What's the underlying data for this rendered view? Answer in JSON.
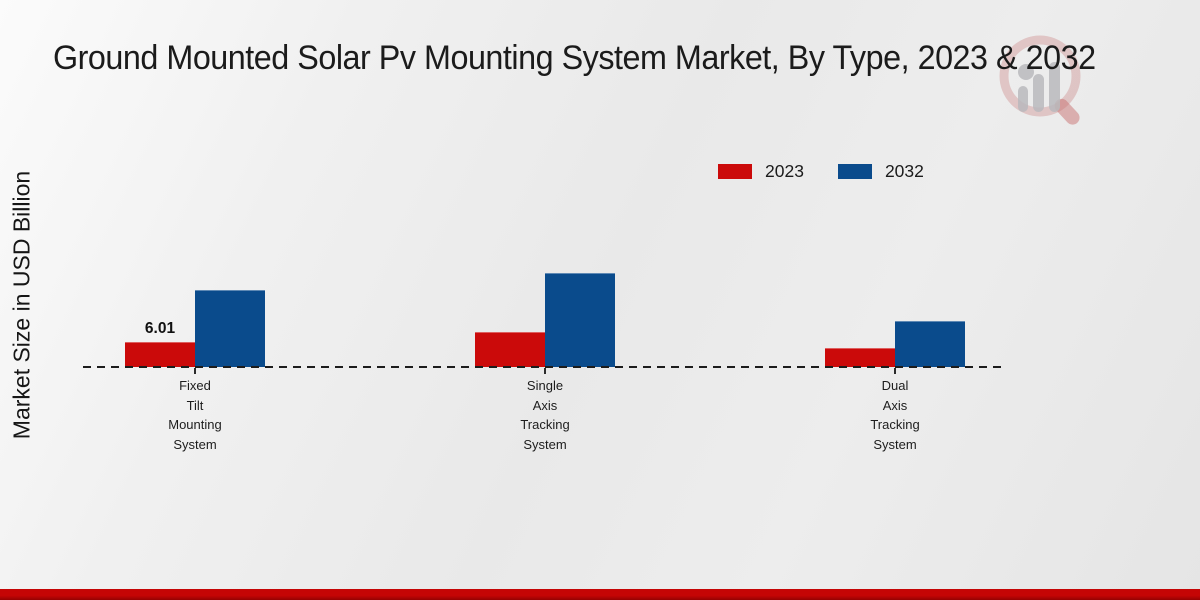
{
  "title": "Ground Mounted Solar Pv Mounting System Market, By Type, 2023 & 2032",
  "y_axis_label": "Market Size in USD Billion",
  "watermark_icon": "magnifier-bar-chart-logo",
  "colors": {
    "series_2023": "#cb0a0a",
    "series_2032": "#0a4b8c",
    "footer_strip": "#c50505",
    "title_text": "#1b1b1b",
    "axis_dash": "#1c1c1c"
  },
  "chart_data": {
    "type": "bar",
    "title": "Ground Mounted Solar Pv Mounting System Market, By Type, 2023 & 2032",
    "xlabel": "",
    "ylabel": "Market Size in USD Billion",
    "ylim": [
      0,
      25
    ],
    "grid": false,
    "legend_position": "top-right",
    "baseline_style": "dashed",
    "categories_flat": [
      "Fixed Tilt Mounting System",
      "Single Axis Tracking System",
      "Dual Axis Tracking System"
    ],
    "categories": [
      [
        "Fixed",
        "Tilt",
        "Mounting",
        "System"
      ],
      [
        "Single",
        "Axis",
        "Tracking",
        "System"
      ],
      [
        "Dual",
        "Axis",
        "Tracking",
        "System"
      ]
    ],
    "series": [
      {
        "name": "2023",
        "color": "#cb0a0a",
        "values": [
          6.01,
          8.5,
          4.6
        ],
        "data_labels": [
          "6.01",
          "",
          ""
        ]
      },
      {
        "name": "2032",
        "color": "#0a4b8c",
        "values": [
          18.5,
          22.6,
          11.1
        ],
        "data_labels": [
          "",
          "",
          ""
        ]
      }
    ]
  }
}
